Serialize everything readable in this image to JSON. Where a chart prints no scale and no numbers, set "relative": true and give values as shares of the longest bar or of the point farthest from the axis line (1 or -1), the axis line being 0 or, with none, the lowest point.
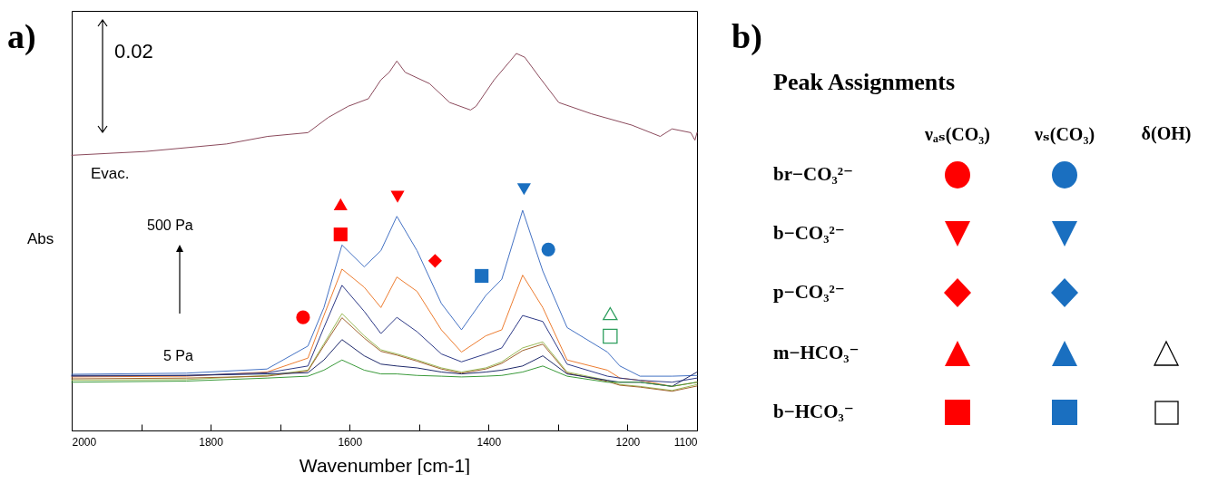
{
  "chart_data": [
    {
      "type": "line",
      "title": "a)",
      "xlabel": "Wavenumber [cm-1]",
      "ylabel": "Abs",
      "relative": true,
      "xlim": [
        2000,
        1100
      ],
      "xticks": [
        2000,
        {
          "value": 1900,
          "label": null
        },
        1800,
        {
          "value": 1700,
          "label": null
        },
        1600,
        {
          "value": 1500,
          "label": null
        },
        1400,
        {
          "value": 1300,
          "label": null
        },
        1200,
        1100
      ],
      "annotations": [
        "0.02",
        "Evac.",
        "500 Pa",
        "5 Pa"
      ],
      "series": [
        {
          "type": "line",
          "color": "#8b4a5c",
          "x": [
            2000,
            1894,
            1777,
            1718,
            1660,
            1631,
            1602,
            1573,
            1555,
            1543,
            1532,
            1520,
            1485,
            1456,
            1426,
            1418,
            1392,
            1369,
            1360,
            1348,
            1328,
            1299,
            1252,
            1194,
            1153,
            1136,
            1109,
            1103,
            1100
          ],
          "values": [
            0.73,
            0.74,
            0.76,
            0.78,
            0.79,
            0.83,
            0.86,
            0.88,
            0.93,
            0.95,
            0.98,
            0.95,
            0.92,
            0.87,
            0.85,
            0.86,
            0.93,
            0.98,
            1.0,
            0.99,
            0.94,
            0.87,
            0.84,
            0.81,
            0.78,
            0.8,
            0.79,
            0.77,
            0.79
          ]
        },
        {
          "type": "line",
          "color": "#4472c4",
          "x": [
            2000,
            1835,
            1719,
            1660,
            1637,
            1611,
            1579,
            1555,
            1532,
            1503,
            1468,
            1439,
            1404,
            1381,
            1351,
            1322,
            1287,
            1229,
            1211,
            1182,
            1136,
            1100
          ],
          "values": [
            0.149,
            0.152,
            0.163,
            0.224,
            0.326,
            0.492,
            0.434,
            0.477,
            0.568,
            0.477,
            0.337,
            0.267,
            0.358,
            0.401,
            0.584,
            0.423,
            0.273,
            0.208,
            0.171,
            0.144,
            0.144,
            0.146
          ]
        },
        {
          "type": "line",
          "color": "#ed7d31",
          "x": [
            2000,
            1835,
            1719,
            1660,
            1637,
            1611,
            1579,
            1555,
            1532,
            1503,
            1468,
            1439,
            1404,
            1381,
            1351,
            1322,
            1287,
            1229,
            1211,
            1182,
            1136,
            1100
          ],
          "values": [
            0.142,
            0.144,
            0.155,
            0.192,
            0.305,
            0.428,
            0.38,
            0.326,
            0.407,
            0.369,
            0.267,
            0.208,
            0.251,
            0.267,
            0.412,
            0.326,
            0.187,
            0.16,
            0.139,
            0.133,
            0.117,
            0.128
          ]
        },
        {
          "type": "line",
          "color": "#2e3a87",
          "x": [
            2000,
            1835,
            1719,
            1660,
            1637,
            1611,
            1579,
            1555,
            1532,
            1503,
            1468,
            1439,
            1404,
            1381,
            1351,
            1322,
            1287,
            1229,
            1211,
            1182,
            1136,
            1100
          ],
          "values": [
            0.144,
            0.146,
            0.153,
            0.171,
            0.273,
            0.385,
            0.316,
            0.257,
            0.3,
            0.262,
            0.203,
            0.182,
            0.203,
            0.219,
            0.305,
            0.289,
            0.176,
            0.144,
            0.139,
            0.133,
            0.128,
            0.139
          ]
        },
        {
          "type": "line",
          "color": "#9bbb59",
          "x": [
            2000,
            1835,
            1719,
            1660,
            1637,
            1611,
            1579,
            1555,
            1532,
            1503,
            1468,
            1439,
            1404,
            1381,
            1351,
            1322,
            1287,
            1229,
            1211,
            1182,
            1136,
            1100
          ],
          "values": [
            0.133,
            0.135,
            0.146,
            0.16,
            0.23,
            0.31,
            0.251,
            0.214,
            0.203,
            0.187,
            0.166,
            0.155,
            0.166,
            0.182,
            0.219,
            0.235,
            0.155,
            0.133,
            0.122,
            0.117,
            0.106,
            0.122
          ]
        },
        {
          "type": "line",
          "color": "#a0622d",
          "x": [
            2000,
            1835,
            1719,
            1660,
            1637,
            1611,
            1579,
            1555,
            1532,
            1503,
            1468,
            1439,
            1404,
            1381,
            1351,
            1322,
            1287,
            1229,
            1211,
            1182,
            1136,
            1100
          ],
          "values": [
            0.137,
            0.139,
            0.144,
            0.158,
            0.225,
            0.299,
            0.245,
            0.21,
            0.2,
            0.184,
            0.163,
            0.152,
            0.163,
            0.178,
            0.212,
            0.229,
            0.152,
            0.13,
            0.12,
            0.115,
            0.104,
            0.118
          ]
        },
        {
          "type": "line",
          "color": "#1f2a6b",
          "x": [
            2000,
            1835,
            1719,
            1660,
            1637,
            1611,
            1579,
            1555,
            1532,
            1503,
            1468,
            1439,
            1404,
            1381,
            1351,
            1322,
            1287,
            1229,
            1211,
            1182,
            1136,
            1100
          ],
          "values": [
            0.146,
            0.146,
            0.15,
            0.153,
            0.187,
            0.241,
            0.198,
            0.176,
            0.171,
            0.166,
            0.155,
            0.15,
            0.155,
            0.16,
            0.171,
            0.198,
            0.15,
            0.133,
            0.128,
            0.128,
            0.117,
            0.155
          ]
        },
        {
          "type": "line",
          "color": "#3a9a3a",
          "x": [
            2000,
            1835,
            1719,
            1660,
            1637,
            1611,
            1579,
            1555,
            1532,
            1503,
            1468,
            1439,
            1404,
            1381,
            1351,
            1322,
            1287,
            1229,
            1211,
            1182,
            1136,
            1100
          ],
          "values": [
            0.128,
            0.131,
            0.139,
            0.144,
            0.16,
            0.187,
            0.16,
            0.15,
            0.15,
            0.146,
            0.144,
            0.142,
            0.144,
            0.146,
            0.155,
            0.171,
            0.144,
            0.128,
            0.128,
            0.128,
            0.117,
            0.128
          ]
        },
        {
          "type": "scatter",
          "marker": "circle",
          "color": "#ff0000",
          "x": [
            1667
          ],
          "values": [
            0.3
          ]
        },
        {
          "type": "scatter",
          "marker": "square",
          "color": "#ff0000",
          "x": [
            1613
          ],
          "values": [
            0.52
          ]
        },
        {
          "type": "scatter",
          "marker": "triangle",
          "color": "#ff0000",
          "x": [
            1613
          ],
          "values": [
            0.6
          ]
        },
        {
          "type": "scatter",
          "marker": "triangle-down",
          "color": "#ff0000",
          "x": [
            1531
          ],
          "values": [
            0.62
          ]
        },
        {
          "type": "scatter",
          "marker": "diamond",
          "color": "#ff0000",
          "x": [
            1477
          ],
          "values": [
            0.45
          ]
        },
        {
          "type": "scatter",
          "marker": "square",
          "color": "#1a6fc0",
          "x": [
            1410
          ],
          "values": [
            0.41
          ]
        },
        {
          "type": "scatter",
          "marker": "triangle-down",
          "color": "#1a6fc0",
          "x": [
            1349
          ],
          "values": [
            0.64
          ]
        },
        {
          "type": "scatter",
          "marker": "circle",
          "color": "#1a6fc0",
          "x": [
            1314
          ],
          "values": [
            0.48
          ]
        },
        {
          "type": "scatter",
          "marker": "triangle-open",
          "color": "#2e9e5e",
          "x": [
            1225
          ],
          "values": [
            0.31
          ]
        },
        {
          "type": "scatter",
          "marker": "square-open",
          "color": "#2e9e5e",
          "x": [
            1225
          ],
          "values": [
            0.25
          ]
        }
      ]
    },
    {
      "type": "other",
      "title": "b)",
      "subtitle": "Peak Assignments",
      "categories": [
        "νₐₛ(CO₃)",
        "νₛ(CO₃)",
        "δ(OH)"
      ],
      "y_categories": [
        "br−CO₃²⁻",
        "b−CO₃²⁻",
        "p−CO₃²⁻",
        "m−HCO₃⁻",
        "b−HCO₃⁻"
      ]
    }
  ]
}
